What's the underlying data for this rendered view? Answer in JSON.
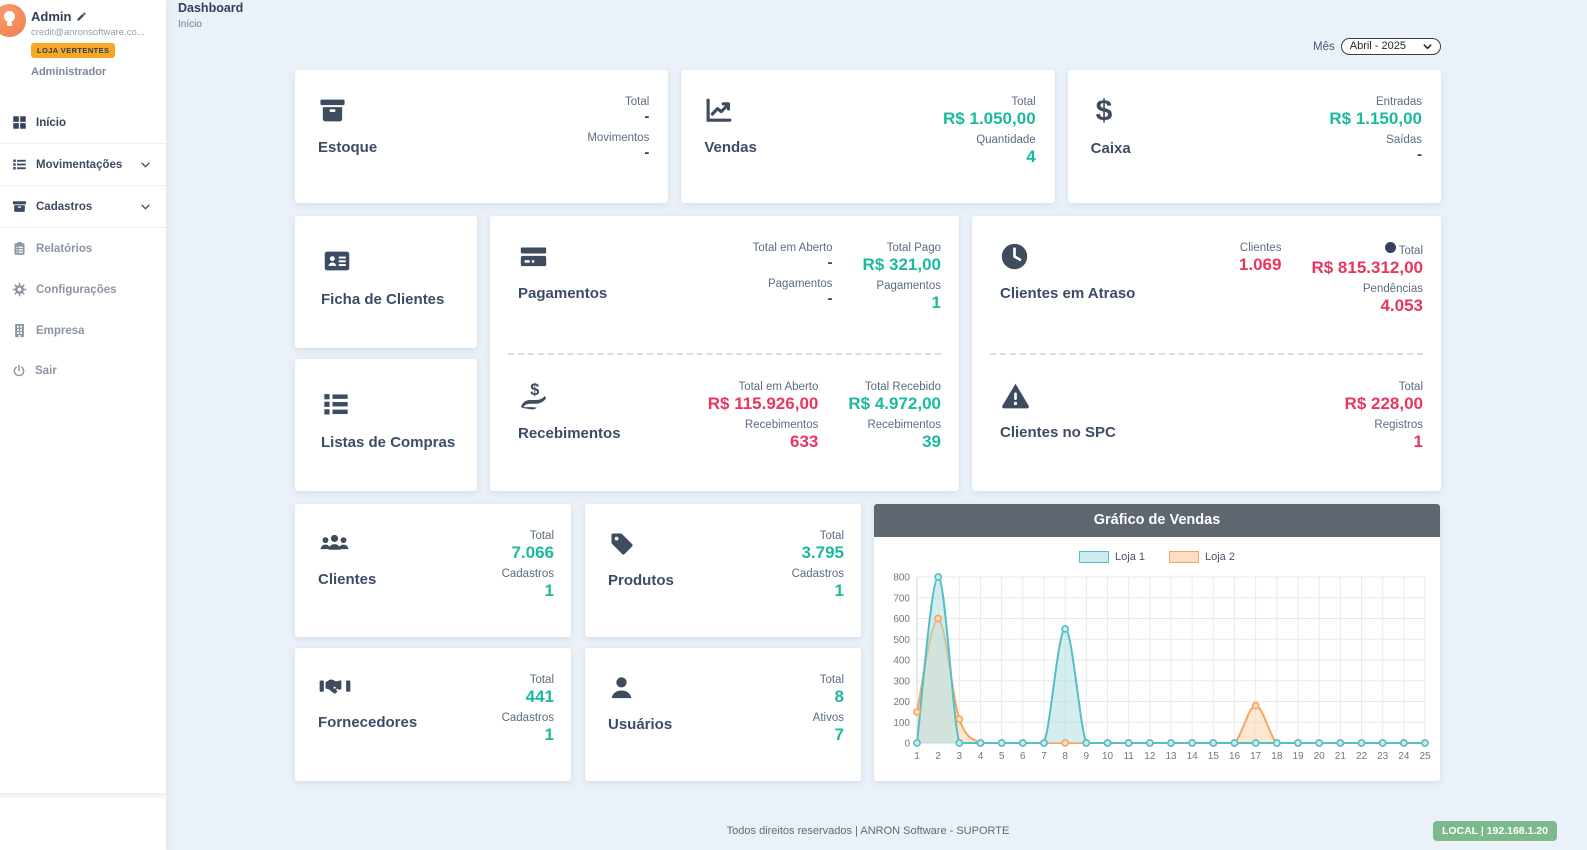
{
  "colors": {
    "teal": "#1cb99e",
    "red": "#e8365f",
    "navy": "#33415c",
    "badge_orange": "#f6a723",
    "badge_green": "#7cb98c",
    "chart_header": "#5e666f"
  },
  "sidebar": {
    "user": {
      "name": "Admin",
      "email": "credit@anronsoftware.co...",
      "badge": "LOJA VERTENTES",
      "role": "Administrador"
    },
    "menu": [
      {
        "label": "Início"
      },
      {
        "label": "Movimentações"
      },
      {
        "label": "Cadastros"
      },
      {
        "label": "Relatórios"
      },
      {
        "label": "Configurações"
      },
      {
        "label": "Empresa"
      },
      {
        "label": "Sair"
      }
    ]
  },
  "header": {
    "title": "Dashboard",
    "breadcrumb": "Início",
    "month_label": "Mês",
    "month_value": "Abril - 2025"
  },
  "cards": {
    "estoque": {
      "title": "Estoque",
      "stats": [
        {
          "label": "Total",
          "value": "-"
        },
        {
          "label": "Movimentos",
          "value": "-"
        }
      ]
    },
    "vendas": {
      "title": "Vendas",
      "stats": [
        {
          "label": "Total",
          "value": "R$ 1.050,00"
        },
        {
          "label": "Quantidade",
          "value": "4"
        }
      ]
    },
    "caixa": {
      "title": "Caixa",
      "stats": [
        {
          "label": "Entradas",
          "value": "R$ 1.150,00"
        },
        {
          "label": "Saídas",
          "value": "-"
        }
      ]
    },
    "ficha": {
      "title": "Ficha de Clientes"
    },
    "listas": {
      "title": "Listas de Compras"
    },
    "pagamentos": {
      "title": "Pagamentos",
      "stats_left": [
        {
          "label": "Total em Aberto",
          "value": "-"
        },
        {
          "label": "Pagamentos",
          "value": "-"
        }
      ],
      "stats_right": [
        {
          "label": "Total Pago",
          "value": "R$ 321,00"
        },
        {
          "label": "Pagamentos",
          "value": "1"
        }
      ]
    },
    "recebimentos": {
      "title": "Recebimentos",
      "stats_left": [
        {
          "label": "Total em Aberto",
          "value": "R$ 115.926,00"
        },
        {
          "label": "Recebimentos",
          "value": "633"
        }
      ],
      "stats_right": [
        {
          "label": "Total Recebido",
          "value": "R$ 4.972,00"
        },
        {
          "label": "Recebimentos",
          "value": "39"
        }
      ]
    },
    "atraso": {
      "title": "Clientes em Atraso",
      "stats_left": [
        {
          "label": "Clientes",
          "value": "1.069"
        }
      ],
      "stats_right": [
        {
          "label": "Total",
          "value": "R$ 815.312,00"
        },
        {
          "label": "Pendências",
          "value": "4.053"
        }
      ]
    },
    "spc": {
      "title": "Clientes no SPC",
      "stats": [
        {
          "label": "Total",
          "value": "R$ 228,00"
        },
        {
          "label": "Registros",
          "value": "1"
        }
      ]
    },
    "clientes": {
      "title": "Clientes",
      "stats": [
        {
          "label": "Total",
          "value": "7.066"
        },
        {
          "label": "Cadastros",
          "value": "1"
        }
      ]
    },
    "produtos": {
      "title": "Produtos",
      "stats": [
        {
          "label": "Total",
          "value": "3.795"
        },
        {
          "label": "Cadastros",
          "value": "1"
        }
      ]
    },
    "fornecedores": {
      "title": "Fornecedores",
      "stats": [
        {
          "label": "Total",
          "value": "441"
        },
        {
          "label": "Cadastros",
          "value": "1"
        }
      ]
    },
    "usuarios": {
      "title": "Usuários",
      "stats": [
        {
          "label": "Total",
          "value": "8"
        },
        {
          "label": "Ativos",
          "value": "7"
        }
      ]
    }
  },
  "chart_data": {
    "type": "area",
    "title": "Gráfico de Vendas",
    "x": [
      1,
      2,
      3,
      4,
      5,
      6,
      7,
      8,
      9,
      10,
      11,
      12,
      13,
      14,
      15,
      16,
      17,
      18,
      19,
      20,
      21,
      22,
      23,
      24,
      25
    ],
    "series": [
      {
        "name": "Loja 1",
        "color": "#55bec6",
        "fill": "rgba(176,222,226,0.55)",
        "point_fill": "#cdeaee",
        "values": [
          0,
          800,
          0,
          0,
          0,
          0,
          0,
          550,
          0,
          0,
          0,
          0,
          0,
          0,
          0,
          0,
          0,
          0,
          0,
          0,
          0,
          0,
          0,
          0,
          0
        ]
      },
      {
        "name": "Loja 2",
        "color": "#f5a55f",
        "fill": "rgba(249,217,181,0.6)",
        "point_fill": "#fbdfc2",
        "values": [
          150,
          600,
          115,
          0,
          0,
          0,
          0,
          0,
          0,
          0,
          0,
          0,
          0,
          0,
          0,
          0,
          180,
          0,
          0,
          0,
          0,
          0,
          0,
          0,
          0
        ]
      }
    ],
    "ylim": [
      0,
      800
    ],
    "ytick_step": 100,
    "grid": true,
    "legend_position": "top"
  },
  "footer": {
    "text": "Todos direitos reservados | ANRON Software - SUPORTE",
    "badge": "LOCAL | 192.168.1.20"
  }
}
